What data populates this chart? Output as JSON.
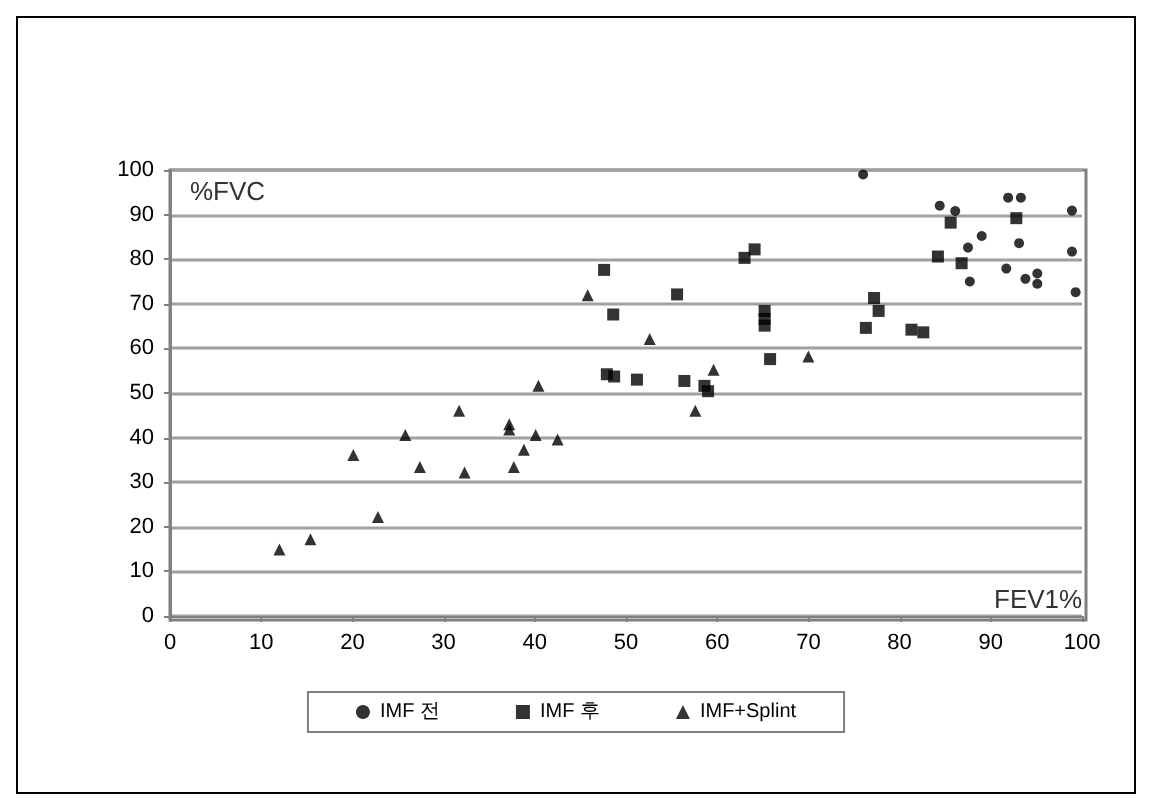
{
  "chart_data": {
    "type": "scatter",
    "xlabel": "FEV1%",
    "ylabel": "%FVC",
    "xlim": [
      0,
      100
    ],
    "xticks": [
      0,
      10,
      20,
      30,
      40,
      50,
      60,
      70,
      80,
      90,
      100
    ],
    "ylim": [
      0,
      100
    ],
    "yticks": [
      0,
      10,
      20,
      30,
      40,
      50,
      60,
      70,
      80,
      90,
      100
    ],
    "grid": "y",
    "legend": "bottom",
    "series": [
      {
        "name": "IMF 전",
        "color": "#000000",
        "marker": "circle",
        "x": [
          76,
          84.4,
          86.1,
          87.5,
          87.7,
          89,
          91.7,
          91.9,
          93.3,
          93.1,
          93.8,
          95.1,
          95.1,
          98.9,
          98.9,
          99.3
        ],
        "values": [
          99,
          92,
          90.8,
          82.6,
          75,
          85.2,
          77.9,
          93.8,
          93.8,
          83.6,
          75.6,
          76.8,
          74.5,
          90.9,
          81.7,
          72.6
        ]
      },
      {
        "name": "IMF 후",
        "color": "#000000",
        "marker": "square",
        "x": [
          47.6,
          48.6,
          47.9,
          48.7,
          51.2,
          55.6,
          56.4,
          58.6,
          59,
          63,
          64.1,
          65.2,
          65.2,
          65.2,
          65.8,
          76.3,
          77.2,
          77.7,
          81.3,
          82.6,
          84.2,
          86.8,
          85.6,
          92.8
        ],
        "values": [
          77.6,
          67.6,
          54.2,
          53.7,
          53,
          72.1,
          52.7,
          51.6,
          50.4,
          80.3,
          82.2,
          68.4,
          66.6,
          65.1,
          57.6,
          64.6,
          71.3,
          68.4,
          64.2,
          63.6,
          80.6,
          79.1,
          88.2,
          89.2
        ]
      },
      {
        "name": "IMF+Splint",
        "color": "#000000",
        "marker": "triangle",
        "x": [
          12,
          15.4,
          20.1,
          22.8,
          25.8,
          27.4,
          31.7,
          32.3,
          37.2,
          37.2,
          37.7,
          38.8,
          40.1,
          40.4,
          42.5,
          45.8,
          52.6,
          59.6,
          57.6,
          70
        ],
        "values": [
          14.9,
          17.2,
          36.1,
          22.2,
          40.6,
          33.4,
          46,
          32.2,
          43,
          41.8,
          33.4,
          37.3,
          40.6,
          51.6,
          39.6,
          71.9,
          62.1,
          55.2,
          46,
          58.2
        ]
      }
    ]
  }
}
